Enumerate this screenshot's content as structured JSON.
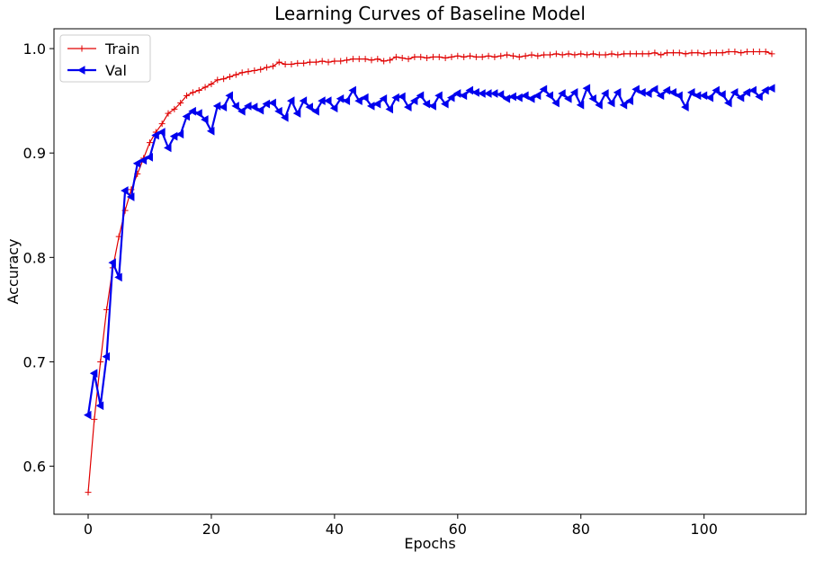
{
  "chart_data": {
    "type": "line",
    "title": "Learning Curves of Baseline Model",
    "x_label": "Epochs",
    "y_label": "Accuracy",
    "x": [
      0,
      1,
      2,
      3,
      4,
      5,
      6,
      7,
      8,
      9,
      10,
      11,
      12,
      13,
      14,
      15,
      16,
      17,
      18,
      19,
      20,
      21,
      22,
      23,
      24,
      25,
      26,
      27,
      28,
      29,
      30,
      31,
      32,
      33,
      34,
      35,
      36,
      37,
      38,
      39,
      40,
      41,
      42,
      43,
      44,
      45,
      46,
      47,
      48,
      49,
      50,
      51,
      52,
      53,
      54,
      55,
      56,
      57,
      58,
      59,
      60,
      61,
      62,
      63,
      64,
      65,
      66,
      67,
      68,
      69,
      70,
      71,
      72,
      73,
      74,
      75,
      76,
      77,
      78,
      79,
      80,
      81,
      82,
      83,
      84,
      85,
      86,
      87,
      88,
      89,
      90,
      91,
      92,
      93,
      94,
      95,
      96,
      97,
      98,
      99,
      100,
      101,
      102,
      103,
      104,
      105,
      106,
      107,
      108,
      109,
      110,
      111
    ],
    "series": [
      {
        "name": "Train",
        "color": "#e00000",
        "marker": "plus",
        "values": [
          0.575,
          0.645,
          0.7,
          0.75,
          0.79,
          0.82,
          0.845,
          0.865,
          0.88,
          0.895,
          0.91,
          0.92,
          0.928,
          0.938,
          0.942,
          0.948,
          0.955,
          0.958,
          0.96,
          0.963,
          0.966,
          0.97,
          0.971,
          0.973,
          0.975,
          0.977,
          0.978,
          0.979,
          0.98,
          0.982,
          0.983,
          0.987,
          0.985,
          0.985,
          0.986,
          0.986,
          0.987,
          0.987,
          0.988,
          0.987,
          0.988,
          0.988,
          0.989,
          0.99,
          0.99,
          0.99,
          0.989,
          0.99,
          0.988,
          0.989,
          0.992,
          0.991,
          0.99,
          0.992,
          0.992,
          0.991,
          0.992,
          0.992,
          0.991,
          0.992,
          0.993,
          0.992,
          0.993,
          0.992,
          0.992,
          0.993,
          0.992,
          0.993,
          0.994,
          0.993,
          0.992,
          0.993,
          0.994,
          0.993,
          0.994,
          0.994,
          0.995,
          0.994,
          0.995,
          0.994,
          0.995,
          0.994,
          0.995,
          0.994,
          0.994,
          0.995,
          0.994,
          0.995,
          0.995,
          0.995,
          0.995,
          0.995,
          0.996,
          0.994,
          0.996,
          0.996,
          0.996,
          0.995,
          0.996,
          0.996,
          0.995,
          0.996,
          0.996,
          0.996,
          0.997,
          0.997,
          0.996,
          0.997,
          0.997,
          0.997,
          0.997,
          0.995
        ]
      },
      {
        "name": "Val",
        "color": "#0000ee",
        "marker": "triangle-left",
        "values": [
          0.649,
          0.689,
          0.658,
          0.705,
          0.795,
          0.781,
          0.864,
          0.858,
          0.89,
          0.893,
          0.896,
          0.917,
          0.92,
          0.905,
          0.916,
          0.918,
          0.935,
          0.94,
          0.938,
          0.932,
          0.921,
          0.945,
          0.944,
          0.955,
          0.945,
          0.94,
          0.945,
          0.944,
          0.941,
          0.947,
          0.948,
          0.94,
          0.934,
          0.95,
          0.938,
          0.95,
          0.944,
          0.94,
          0.95,
          0.95,
          0.943,
          0.952,
          0.95,
          0.96,
          0.95,
          0.953,
          0.945,
          0.947,
          0.952,
          0.942,
          0.953,
          0.954,
          0.944,
          0.95,
          0.955,
          0.947,
          0.945,
          0.955,
          0.947,
          0.953,
          0.957,
          0.955,
          0.96,
          0.958,
          0.957,
          0.957,
          0.957,
          0.956,
          0.952,
          0.954,
          0.953,
          0.955,
          0.952,
          0.955,
          0.961,
          0.955,
          0.948,
          0.957,
          0.952,
          0.958,
          0.946,
          0.962,
          0.952,
          0.946,
          0.957,
          0.948,
          0.958,
          0.946,
          0.95,
          0.961,
          0.958,
          0.957,
          0.961,
          0.955,
          0.96,
          0.958,
          0.955,
          0.944,
          0.958,
          0.955,
          0.955,
          0.953,
          0.96,
          0.956,
          0.948,
          0.958,
          0.953,
          0.958,
          0.96,
          0.954,
          0.96,
          0.962
        ]
      }
    ],
    "xlim": [
      -5.55,
      116.55
    ],
    "xticks": [
      0,
      20,
      40,
      60,
      80,
      100
    ],
    "ylim": [
      0.554,
      1.019
    ],
    "yticks": [
      0.6,
      0.7,
      0.8,
      0.9,
      {
        "value": 1,
        "label": "1.0"
      }
    ],
    "legend": "upper-left"
  }
}
